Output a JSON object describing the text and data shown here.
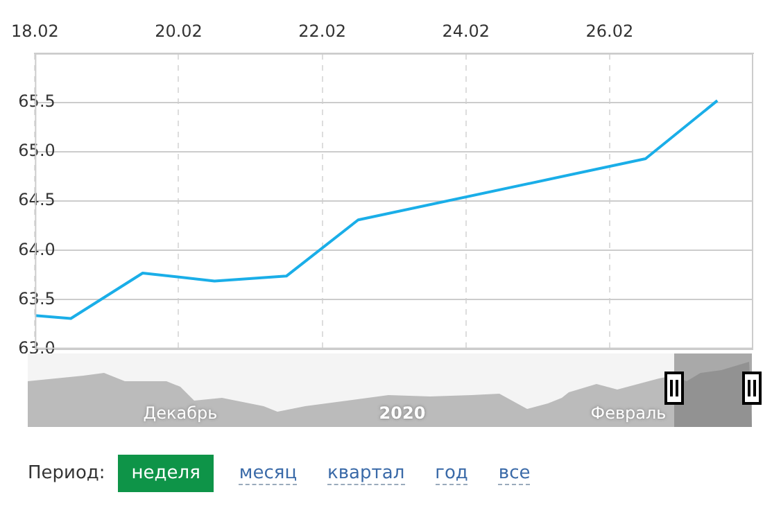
{
  "chart_data": {
    "type": "line",
    "x": [
      "2020-02-18T00:00",
      "2020-02-18T12:00",
      "2020-02-19T12:00",
      "2020-02-20T12:00",
      "2020-02-21T12:00",
      "2020-02-22T12:00",
      "2020-02-26T12:00",
      "2020-02-27T12:00"
    ],
    "series": [
      {
        "color": "#1aaee8",
        "values": [
          63.34,
          63.31,
          63.77,
          63.69,
          63.74,
          64.31,
          64.93,
          65.52
        ]
      }
    ],
    "xlim": [
      "2020-02-18T00:00",
      "2020-02-28T00:00"
    ],
    "xticks": [
      {
        "value": "2020-02-18",
        "label": "18.02"
      },
      {
        "value": "2020-02-20",
        "label": "20.02"
      },
      {
        "value": "2020-02-22",
        "label": "22.02"
      },
      {
        "value": "2020-02-24",
        "label": "24.02"
      },
      {
        "value": "2020-02-26",
        "label": "26.02"
      }
    ],
    "ylim": [
      63,
      66
    ],
    "yticks": [
      {
        "value": 63,
        "label": "63.0"
      },
      {
        "value": 63.5,
        "label": "63.5"
      },
      {
        "value": 64,
        "label": "64.0"
      },
      {
        "value": 64.5,
        "label": "64.5"
      },
      {
        "value": 65,
        "label": "65.0"
      },
      {
        "value": 65.5,
        "label": "65.5"
      }
    ],
    "grid": true,
    "marker": "none",
    "line_style": "solid",
    "annotations": [
      "Декабрь",
      "2020",
      "Февраль",
      "Период:",
      "неделя",
      "месяц",
      "квартал",
      "год",
      "все"
    ]
  }
}
